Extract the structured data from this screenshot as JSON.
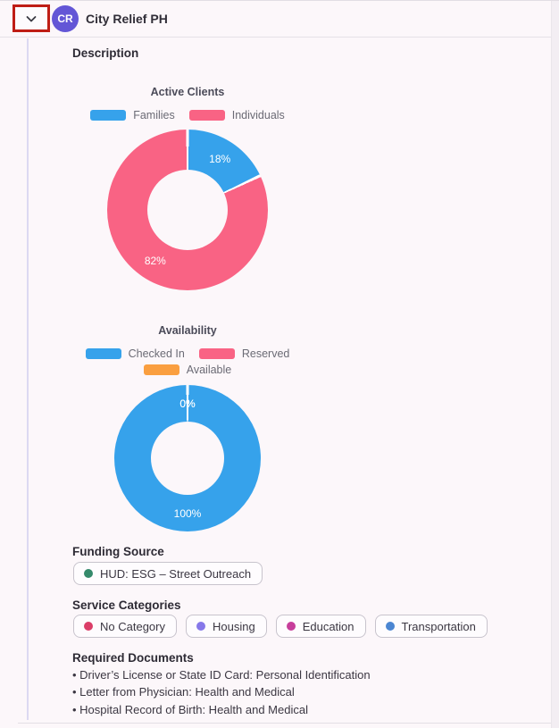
{
  "header": {
    "title": "City Relief PH",
    "avatar_initials": "CR"
  },
  "panel": {
    "description_label": "Description"
  },
  "chart_data": [
    {
      "type": "pie",
      "donut": true,
      "title": "Active Clients",
      "categories": [
        "Families",
        "Individuals"
      ],
      "values": [
        18,
        82
      ],
      "colors": [
        "#36A2EB",
        "#F96384"
      ],
      "data_labels": [
        "18%",
        "82%"
      ],
      "legend_position": "top"
    },
    {
      "type": "pie",
      "donut": true,
      "title": "Availability",
      "categories": [
        "Checked In",
        "Reserved",
        "Available"
      ],
      "values": [
        100,
        0,
        0
      ],
      "colors": [
        "#36A2EB",
        "#F96384",
        "#FA9F40"
      ],
      "data_labels": [
        "100%",
        "0%",
        "0%"
      ],
      "legend_position": "top"
    }
  ],
  "funding_source": {
    "label": "Funding Source",
    "chips": [
      {
        "text": "HUD: ESG – Street Outreach",
        "dot_color": "#35896B"
      }
    ]
  },
  "service_categories": {
    "label": "Service Categories",
    "chips": [
      {
        "text": "No Category",
        "dot_color": "#DB3E68"
      },
      {
        "text": "Housing",
        "dot_color": "#8678E9"
      },
      {
        "text": "Education",
        "dot_color": "#C73E9B"
      },
      {
        "text": "Transportation",
        "dot_color": "#4B86D2"
      }
    ]
  },
  "required_documents": {
    "label": "Required Documents",
    "items": [
      "Driver’s License or State ID Card: Personal Identification",
      "Letter from Physician: Health and Medical",
      "Hospital Record of Birth: Health and Medical"
    ]
  },
  "colors": {
    "avatar_purple": "#6356D6",
    "annotation_red": "#BF1D15",
    "chart_blue": "#36A2EB",
    "chart_pink": "#F96384",
    "chart_orange": "#FA9F40",
    "accent_line": "#DCD9F2"
  }
}
